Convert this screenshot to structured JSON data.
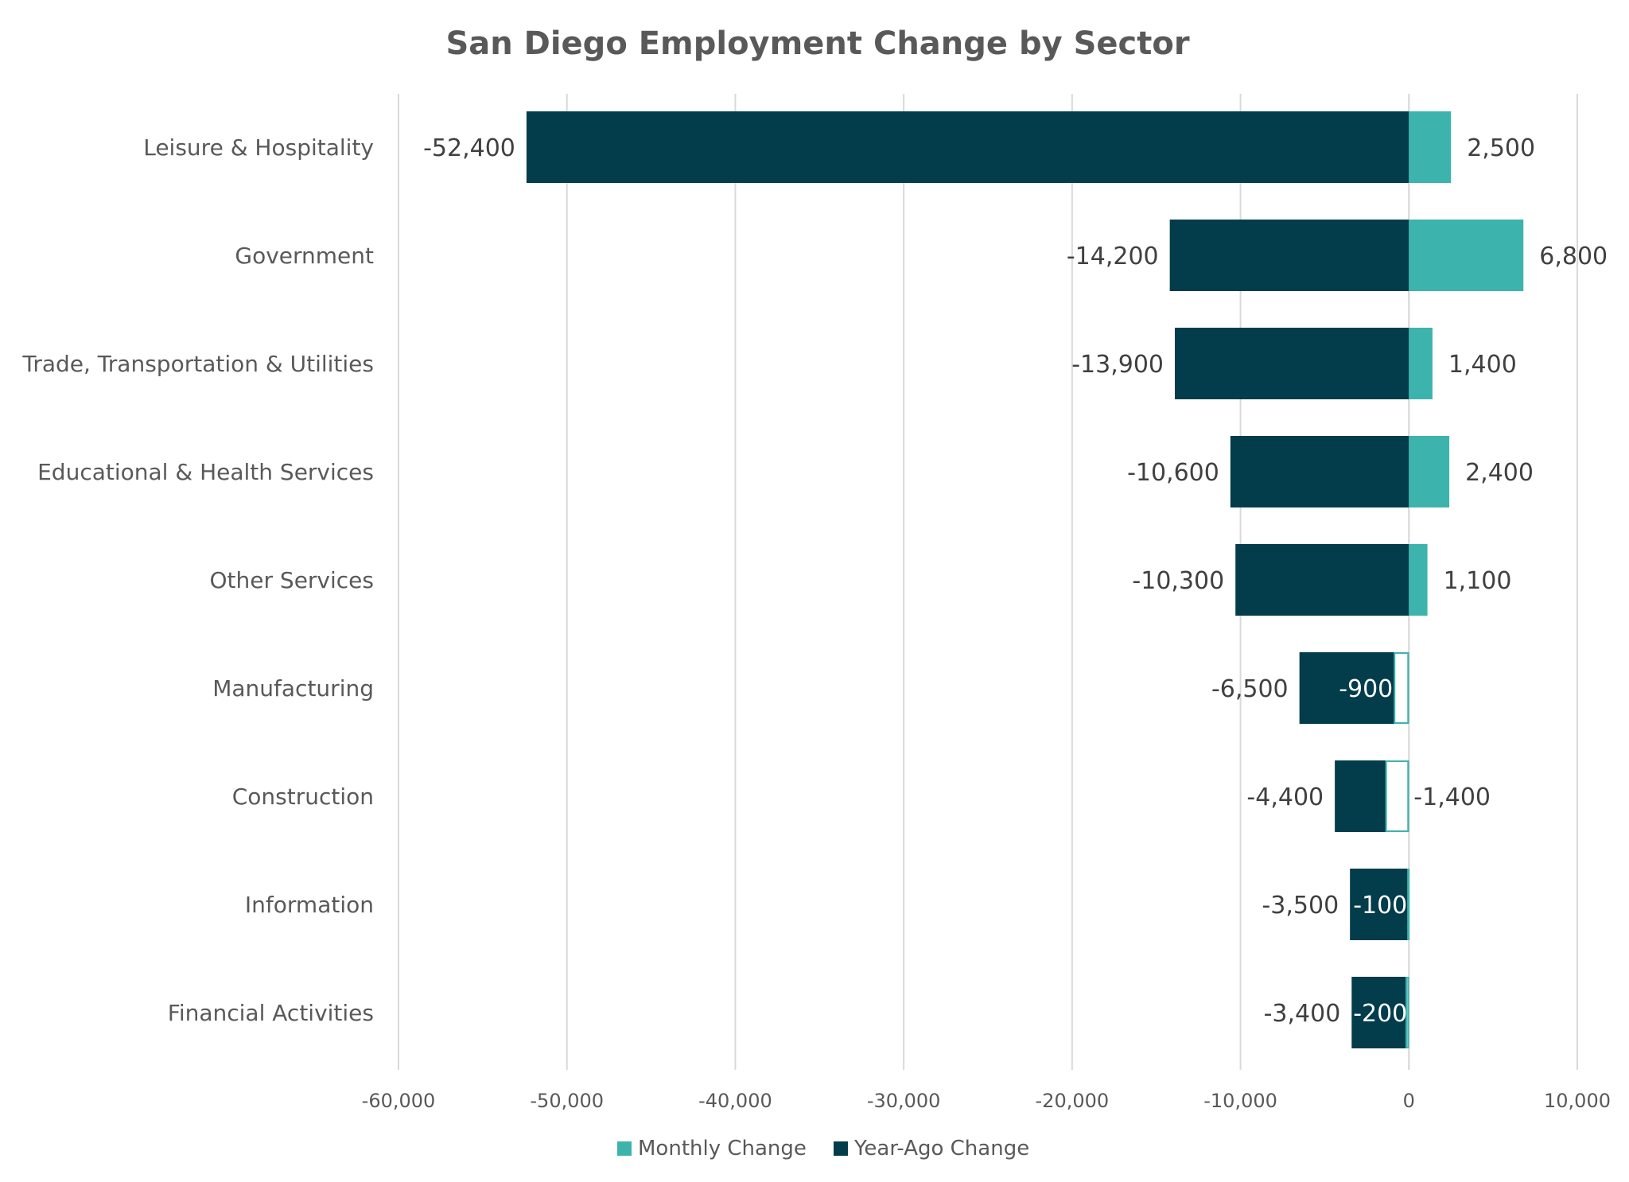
{
  "chart_data": {
    "type": "bar",
    "orientation": "horizontal",
    "title": "San Diego Employment Change by Sector",
    "categories": [
      "Leisure & Hospitality",
      "Government",
      "Trade, Transportation & Utilities",
      "Educational & Health Services",
      "Other Services",
      "Manufacturing",
      "Construction",
      "Information",
      "Financial Activities"
    ],
    "series": [
      {
        "name": "Monthly Change",
        "color": "#3db3ad",
        "values": [
          2500,
          6800,
          1400,
          2400,
          1100,
          -900,
          -1400,
          -100,
          -200
        ],
        "labels": [
          "2,500",
          "6,800",
          "1,400",
          "2,400",
          "1,100",
          "-900",
          "-1,400",
          "-100",
          "-200"
        ]
      },
      {
        "name": "Year-Ago Change",
        "color": "#033c4b",
        "values": [
          -52400,
          -14200,
          -13900,
          -10600,
          -10300,
          -6500,
          -4400,
          -3500,
          -3400
        ],
        "labels": [
          "-52,400",
          "-14,200",
          "-13,900",
          "-10,600",
          "-10,300",
          "-6,500",
          "-4,400",
          "-3,500",
          "-3,400"
        ]
      }
    ],
    "xlim": [
      -60000,
      10000
    ],
    "xticks": [
      -60000,
      -50000,
      -40000,
      -30000,
      -20000,
      -10000,
      0,
      10000
    ],
    "xtick_labels": [
      "-60,000",
      "-50,000",
      "-40,000",
      "-30,000",
      "-20,000",
      "-10,000",
      "0",
      "10,000"
    ],
    "grid": true,
    "legend": "bottom-center",
    "xlabel": "",
    "ylabel": ""
  }
}
